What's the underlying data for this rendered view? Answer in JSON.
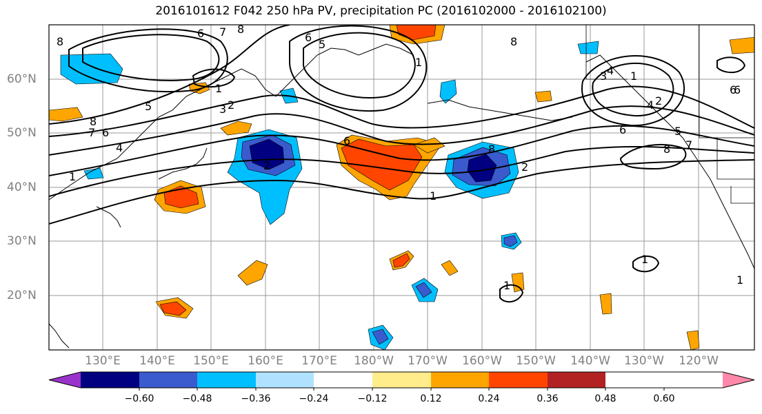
{
  "title": "2016101612 F042 250 hPa PV, precipitation PC (2016102000 - 2016102100)",
  "lon_labels": [
    "130°E",
    "140°E",
    "150°E",
    "160°E",
    "170°E",
    "180°W",
    "170°W",
    "160°W",
    "150°W",
    "140°W",
    "130°W",
    "120°W"
  ],
  "lat_labels": [
    "60°N",
    "50°N",
    "40°N",
    "30°N",
    "20°N"
  ],
  "colorbar": {
    "colors": [
      "#9933cc",
      "#000080",
      "#3a5bcd",
      "#00bfff",
      "#b0e2ff",
      "#ffffff",
      "#ffec8b",
      "#ffa500",
      "#ff4500",
      "#b22222",
      "#ff88aa"
    ],
    "tick_labels": [
      "−0.60",
      "−0.48",
      "−0.36",
      "−0.24",
      "−0.12",
      "0.12",
      "0.24",
      "0.36",
      "0.48",
      "0.60"
    ]
  },
  "contour_labels": [
    "8",
    "6",
    "7",
    "8",
    "6",
    "5",
    "8",
    "2",
    "1",
    "3",
    "4",
    "8",
    "7",
    "1",
    "1",
    "6",
    "6",
    "1",
    "2",
    "3",
    "4",
    "8",
    "5",
    "6",
    "4",
    "1",
    "2",
    "5",
    "6",
    "8",
    "7",
    "2",
    "1",
    "6",
    "1",
    "1"
  ]
}
